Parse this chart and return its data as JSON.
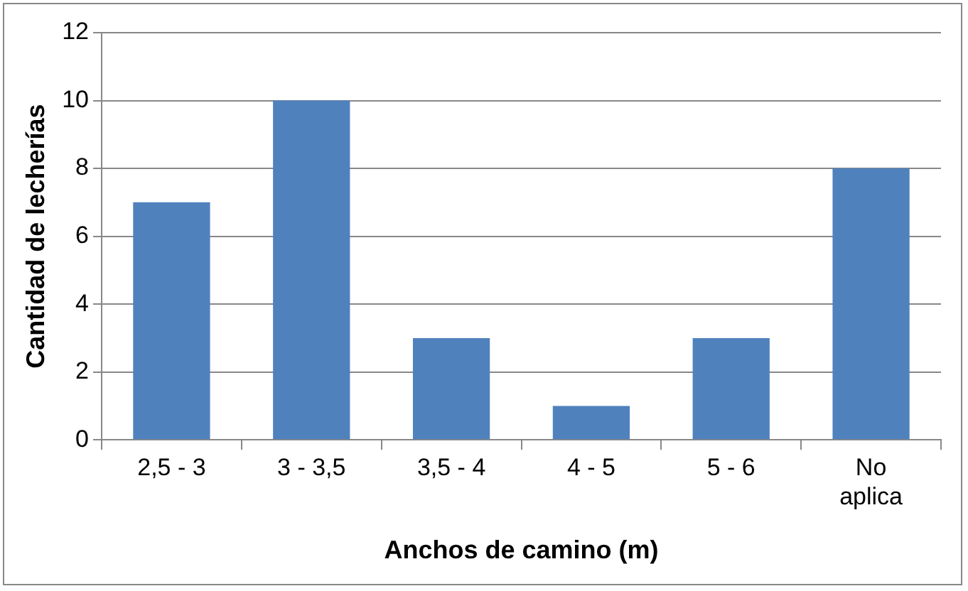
{
  "chart_data": {
    "type": "bar",
    "xlabel": "Anchos de camino (m)",
    "ylabel": "Cantidad de lecherías",
    "categories": [
      "2,5 - 3",
      "3 - 3,5",
      "3,5 - 4",
      "4 - 5",
      "5 - 6",
      "No aplica"
    ],
    "values": [
      7,
      10,
      3,
      1,
      3,
      8
    ],
    "color": "#4f81bd",
    "ylim": [
      0,
      12
    ],
    "yticks": [
      0,
      2,
      4,
      6,
      8,
      10,
      12
    ],
    "grid": "y"
  }
}
